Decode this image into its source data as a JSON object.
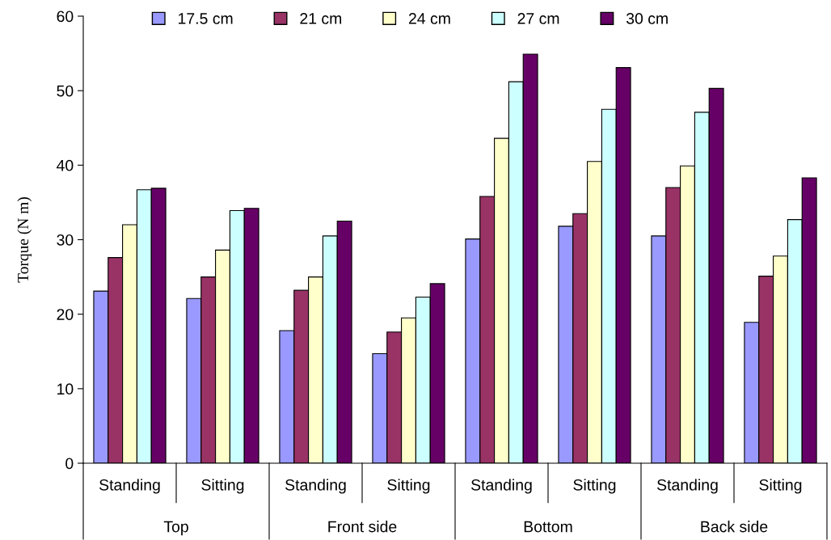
{
  "chart_data": {
    "type": "bar",
    "ylabel": "Torque (N m)",
    "categories": [
      "Standing",
      "Sitting",
      "Standing",
      "Sitting",
      "Standing",
      "Sitting",
      "Standing",
      "Sitting"
    ],
    "annotations": [
      "Top",
      "Front side",
      "Bottom",
      "Back side"
    ],
    "series": [
      {
        "name": "17.5 cm",
        "color": "#9999ff",
        "values": [
          23.1,
          22.1,
          17.8,
          14.7,
          30.1,
          31.8,
          30.5,
          18.9
        ]
      },
      {
        "name": "21 cm",
        "color": "#993366",
        "values": [
          27.6,
          25.0,
          23.2,
          17.6,
          35.8,
          33.5,
          37.0,
          25.1
        ]
      },
      {
        "name": "24 cm",
        "color": "#ffffcc",
        "values": [
          32.0,
          28.6,
          25.0,
          19.5,
          43.6,
          40.5,
          39.9,
          27.8
        ]
      },
      {
        "name": "27 cm",
        "color": "#ccffff",
        "values": [
          36.7,
          33.9,
          30.5,
          22.3,
          51.2,
          47.5,
          47.1,
          32.7
        ]
      },
      {
        "name": "30 cm",
        "color": "#660066",
        "values": [
          36.9,
          34.2,
          32.5,
          24.1,
          54.9,
          53.1,
          50.3,
          38.3
        ]
      }
    ],
    "ylim": [
      0,
      60
    ],
    "yticks": [
      0,
      10,
      20,
      30,
      40,
      50,
      60
    ],
    "grid": false,
    "legend": "top"
  }
}
